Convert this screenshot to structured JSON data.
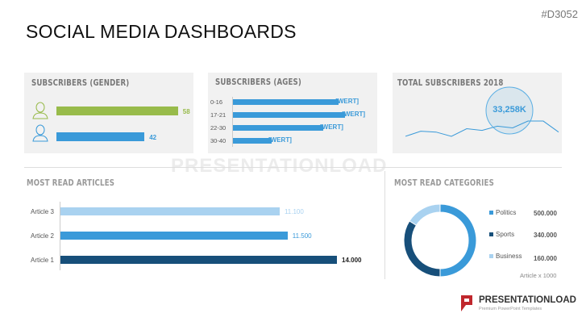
{
  "header": {
    "title": "SOCIAL MEDIA DASHBOARDS",
    "code": "#D3052"
  },
  "gender": {
    "title": "SUBSCRIBERS (GENDER)",
    "items": [
      {
        "name": "female",
        "value": 58,
        "color": "#98bb4b"
      },
      {
        "name": "male",
        "value": 42,
        "color": "#3a9ad9"
      }
    ]
  },
  "ages": {
    "title": "SUBSCRIBERS (AGES)",
    "items": [
      {
        "label": "0-16",
        "value": "[WERT]",
        "fraction": 0.82
      },
      {
        "label": "17-21",
        "value": "[WERT]",
        "fraction": 0.87
      },
      {
        "label": "22-30",
        "value": "[WERT]",
        "fraction": 0.7
      },
      {
        "label": "30-40",
        "value": "[WERT]",
        "fraction": 0.3
      }
    ]
  },
  "total": {
    "title": "TOTAL SUBSCRIBERS 2018",
    "value": "33,258K",
    "trend": [
      1,
      7,
      6,
      1,
      10,
      8,
      13,
      11,
      19,
      19,
      6
    ]
  },
  "articles": {
    "title": "MOST READ ARTICLES",
    "items": [
      {
        "label": "Article 3",
        "value": 11.1,
        "text": "11.100",
        "color": "#a9d2f0"
      },
      {
        "label": "Article 2",
        "value": 11.5,
        "text": "11.500",
        "color": "#3a9ad9"
      },
      {
        "label": "Article 1",
        "value": 14.0,
        "text": "14.000",
        "color": "#174f7a"
      }
    ]
  },
  "categories": {
    "title": "MOST READ CATEGORIES",
    "note": "Article x 1000",
    "items": [
      {
        "label": "Politics",
        "value": 500,
        "text": "500.000",
        "color": "#3a9ad9"
      },
      {
        "label": "Sports",
        "value": 340,
        "text": "340.000",
        "color": "#174f7a"
      },
      {
        "label": "Business",
        "value": 160,
        "text": "160.000",
        "color": "#a9d2f0"
      }
    ]
  },
  "brand": {
    "name": "PRESENTATIONLOAD",
    "tagline": "Premium PowerPoint Templates",
    "watermark": "PRESENTATIONLOAD"
  }
}
